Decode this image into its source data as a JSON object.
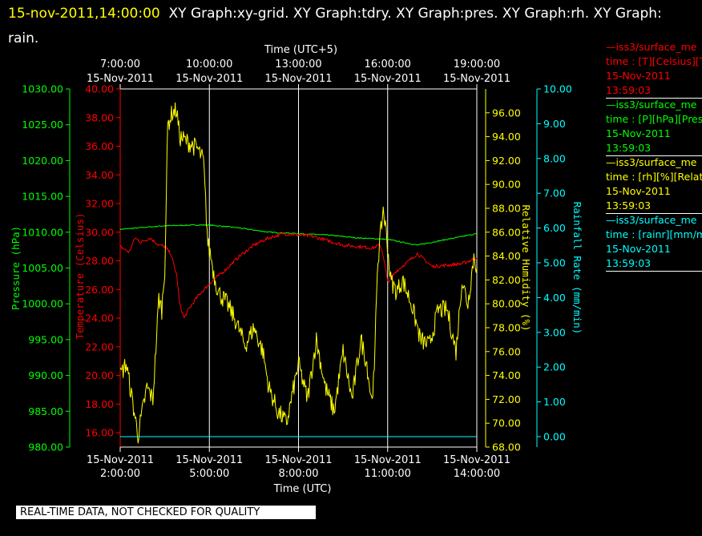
{
  "header": {
    "timestamp": "15-nov-2011,14:00:00",
    "graphs": "XY Graph:xy-grid.  XY Graph:tdry.  XY Graph:pres.  XY Graph:rh.  XY Graph:",
    "graphs_cont": "rain."
  },
  "colors": {
    "pressure": "#00ff00",
    "temperature": "#ff0000",
    "humidity": "#ffff00",
    "rainfall": "#00ffff",
    "grid": "#ffffff",
    "background": "#000000"
  },
  "legend": [
    {
      "line1": "—iss3/surface_me",
      "line2": "time : [T][Celsius][T",
      "line3": "15-Nov-2011",
      "line4": "13:59:03",
      "color": "#ff0000"
    },
    {
      "line1": "—iss3/surface_me",
      "line2": "time : [P][hPa][Pres",
      "line3": "15-Nov-2011",
      "line4": "13:59:03",
      "color": "#00ff00"
    },
    {
      "line1": "—iss3/surface_me",
      "line2": "time : [rh][%][Relati",
      "line3": "15-Nov-2011",
      "line4": "13:59:03",
      "color": "#ffff00"
    },
    {
      "line1": "—iss3/surface_me",
      "line2": "time : [rainr][mm/mi",
      "line3": "15-Nov-2011",
      "line4": "13:59:03",
      "color": "#00ffff"
    }
  ],
  "disclaimer": "REAL-TIME DATA, NOT CHECKED FOR QUALITY",
  "chart_data": {
    "type": "line",
    "grid": "vertical lines at major time ticks",
    "x_bottom": {
      "label": "Time (UTC)",
      "range": [
        "15-Nov-2011 2:00:00",
        "15-Nov-2011 14:00:00"
      ],
      "ticks": [
        {
          "hour": 2,
          "date": "15-Nov-2011",
          "time": "2:00:00"
        },
        {
          "hour": 5,
          "date": "15-Nov-2011",
          "time": "5:00:00"
        },
        {
          "hour": 8,
          "date": "15-Nov-2011",
          "time": "8:00:00"
        },
        {
          "hour": 11,
          "date": "15-Nov-2011",
          "time": "11:00:00"
        },
        {
          "hour": 14,
          "date": "15-Nov-2011",
          "time": "14:00:00"
        }
      ]
    },
    "x_top": {
      "label": "Time (UTC+5)",
      "ticks": [
        {
          "hour": 2,
          "time": "7:00:00",
          "date": "15-Nov-2011"
        },
        {
          "hour": 5,
          "time": "10:00:00",
          "date": "15-Nov-2011"
        },
        {
          "hour": 8,
          "time": "13:00:00",
          "date": "15-Nov-2011"
        },
        {
          "hour": 11,
          "time": "16:00:00",
          "date": "15-Nov-2011"
        },
        {
          "hour": 14,
          "time": "19:00:00",
          "date": "15-Nov-2011"
        }
      ]
    },
    "axes": {
      "pressure": {
        "label": "Pressure (hPa)",
        "ylim": [
          980,
          1030
        ],
        "ticks": [
          "980.00",
          "985.00",
          "990.00",
          "995.00",
          "1000.00",
          "1005.00",
          "1010.00",
          "1015.00",
          "1020.00",
          "1025.00",
          "1030.00"
        ]
      },
      "temperature": {
        "label": "Temperature (Celsius)",
        "ylim": [
          15,
          40
        ],
        "ticks": [
          "16.00",
          "18.00",
          "20.00",
          "22.00",
          "24.00",
          "26.00",
          "28.00",
          "30.00",
          "32.00",
          "34.00",
          "36.00",
          "38.00",
          "40.00"
        ]
      },
      "humidity": {
        "label": "Relative Humidity (%)",
        "ylim": [
          68,
          98
        ],
        "ticks": [
          "68.00",
          "70.00",
          "72.00",
          "74.00",
          "76.00",
          "78.00",
          "80.00",
          "82.00",
          "84.00",
          "86.00",
          "88.00",
          "90.00",
          "92.00",
          "94.00",
          "96.00"
        ]
      },
      "rainfall": {
        "label": "Rainfall Rate (mm/min)",
        "ylim": [
          -0.3,
          10
        ],
        "ticks": [
          "0.00",
          "1.00",
          "2.00",
          "3.00",
          "4.00",
          "5.00",
          "6.00",
          "7.00",
          "8.00",
          "9.00",
          "10.00"
        ]
      }
    },
    "series": [
      {
        "name": "Pressure",
        "axis": "pressure",
        "color": "#00ff00",
        "x": [
          2.0,
          3.5,
          4.5,
          5.0,
          6.0,
          7.0,
          8.0,
          9.0,
          10.0,
          11.0,
          12.0,
          13.0,
          14.0
        ],
        "y": [
          1010.4,
          1010.9,
          1011.0,
          1011.0,
          1010.6,
          1010.0,
          1009.8,
          1009.6,
          1009.2,
          1009.0,
          1008.2,
          1009.0,
          1009.8
        ]
      },
      {
        "name": "Temperature",
        "axis": "temperature",
        "color": "#ff0000",
        "x": [
          2.0,
          2.3,
          2.5,
          2.7,
          3.0,
          3.3,
          3.5,
          3.7,
          3.9,
          4.0,
          4.15,
          4.3,
          4.6,
          5.0,
          5.5,
          6.0,
          6.5,
          7.0,
          7.5,
          8.0,
          8.5,
          9.0,
          9.5,
          10.0,
          10.5,
          10.75,
          10.85,
          11.0,
          11.3,
          11.6,
          12.0,
          12.5,
          13.0,
          13.5,
          14.0
        ],
        "y": [
          29.0,
          28.6,
          29.6,
          29.3,
          29.6,
          29.1,
          29.0,
          28.5,
          27.0,
          25.0,
          24.0,
          24.6,
          25.5,
          26.4,
          27.3,
          28.3,
          29.1,
          29.6,
          29.9,
          29.8,
          29.7,
          29.4,
          29.1,
          29.0,
          28.9,
          29.1,
          28.4,
          26.5,
          27.3,
          27.8,
          28.5,
          27.6,
          27.7,
          27.8,
          28.2
        ]
      },
      {
        "name": "Relative Humidity",
        "axis": "humidity",
        "color": "#ffff00",
        "x": [
          2.0,
          2.2,
          2.4,
          2.6,
          2.75,
          2.9,
          3.1,
          3.3,
          3.4,
          3.5,
          3.6,
          3.75,
          3.9,
          4.0,
          4.3,
          4.6,
          4.8,
          4.95,
          5.05,
          5.15,
          5.3,
          5.6,
          5.9,
          6.2,
          6.5,
          6.8,
          7.0,
          7.3,
          7.6,
          7.8,
          8.0,
          8.3,
          8.6,
          8.9,
          9.2,
          9.5,
          9.8,
          10.1,
          10.3,
          10.45,
          10.55,
          10.65,
          10.85,
          10.95,
          11.1,
          11.3,
          11.5,
          11.8,
          12.1,
          12.4,
          12.7,
          13.0,
          13.3,
          13.5,
          13.7,
          13.9,
          14.0
        ],
        "y": [
          74,
          75,
          72,
          69,
          71,
          73,
          72,
          80.5,
          79.5,
          83,
          95,
          96,
          96.2,
          94,
          93.5,
          93,
          92,
          85,
          84,
          82.5,
          81,
          80,
          78.5,
          76.5,
          78,
          76,
          73,
          71,
          70,
          72.5,
          75,
          72,
          77,
          73,
          71,
          76,
          72,
          77,
          75,
          72,
          74,
          83,
          88,
          86,
          82,
          81,
          82,
          80,
          77,
          76.5,
          79.5,
          79.5,
          76,
          82,
          80,
          84,
          83
        ]
      },
      {
        "name": "Rainfall Rate",
        "axis": "rainfall",
        "color": "#00ffff",
        "x": [
          2.0,
          14.0
        ],
        "y": [
          0.0,
          0.0
        ]
      }
    ]
  }
}
